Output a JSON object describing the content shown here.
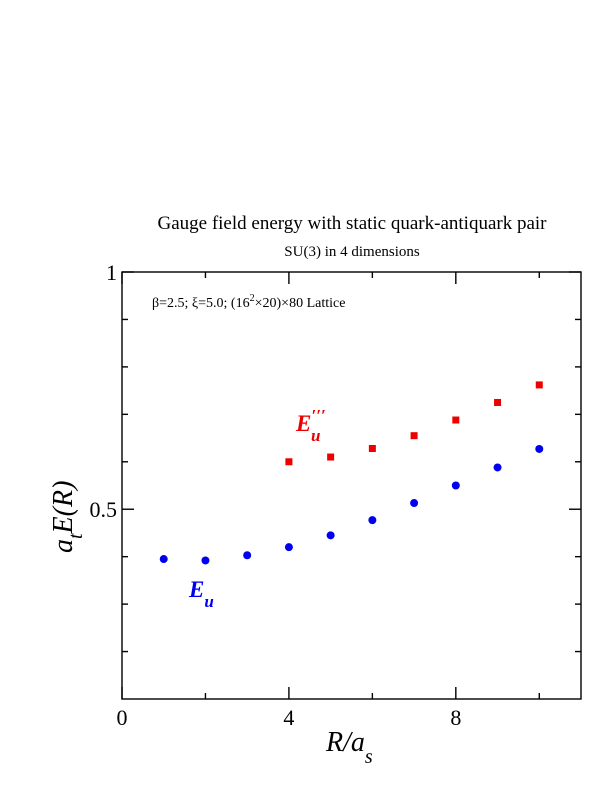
{
  "chart_data": {
    "type": "scatter",
    "title": "Gauge field energy with static quark-antiquark pair",
    "subtitle": "SU(3) in 4 dimensions",
    "annotation": {
      "pre": "β=2.5; ξ=5.0; (16",
      "sup": "2",
      "post": "×20)×80 Lattice"
    },
    "xlabel": {
      "main": "R/a",
      "sub": "s"
    },
    "ylabel": {
      "main": "a",
      "sub": "t",
      "rest": "E(R)"
    },
    "xlim": [
      0,
      11
    ],
    "ylim": [
      0.1,
      1.0
    ],
    "x_ticks": [
      {
        "value": 0,
        "label": "0"
      },
      {
        "value": 4,
        "label": "4"
      },
      {
        "value": 8,
        "label": "8"
      }
    ],
    "x_minor_ticks": [
      2,
      6,
      10
    ],
    "y_ticks": [
      {
        "value": 0.5,
        "label": "0.5"
      },
      {
        "value": 1.0,
        "label": "1"
      }
    ],
    "y_minor_ticks": [
      0.2,
      0.3,
      0.4,
      0.6,
      0.7,
      0.8,
      0.9
    ],
    "grid": false,
    "series": [
      {
        "name": "E_u",
        "label": {
          "main": "E",
          "sub": "u",
          "sup": ""
        },
        "marker": "circle",
        "color": "#0000ee",
        "x": [
          1,
          2,
          3,
          4,
          5,
          6,
          7,
          8,
          9,
          10
        ],
        "y": [
          0.395,
          0.392,
          0.403,
          0.42,
          0.445,
          0.477,
          0.513,
          0.55,
          0.588,
          0.627
        ]
      },
      {
        "name": "E_u'''",
        "label": {
          "main": "E",
          "sub": "u",
          "sup": "′′′"
        },
        "marker": "square",
        "color": "#ee0000",
        "x": [
          4,
          5,
          6,
          7,
          8,
          9,
          10
        ],
        "y": [
          0.6,
          0.61,
          0.628,
          0.655,
          0.688,
          0.725,
          0.762
        ]
      }
    ]
  }
}
